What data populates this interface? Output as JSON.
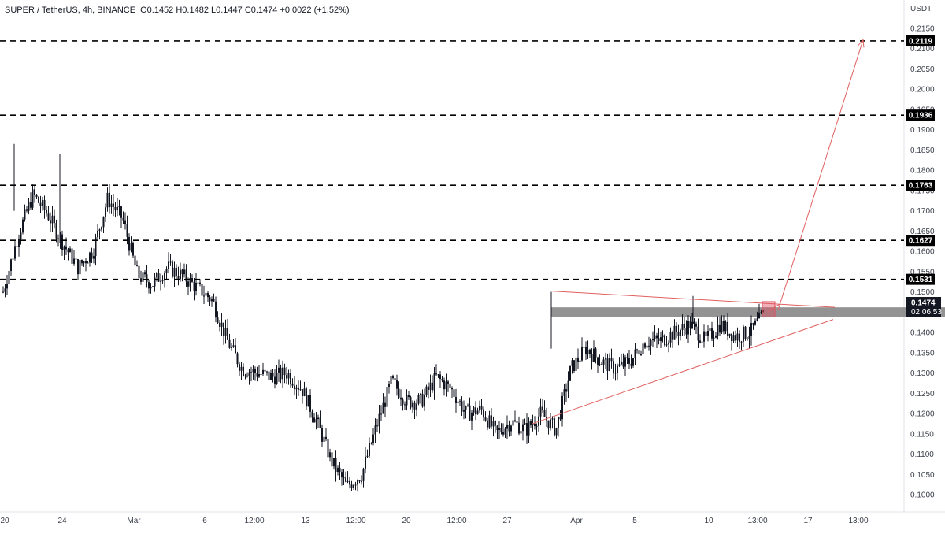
{
  "header": {
    "symbol": "SUPER / TetherUS, 4h, BINANCE",
    "ohlc": "O0.1452 H0.1482 L0.1447 C0.1474 +0.0022 (+1.52%)"
  },
  "axis": {
    "unit": "USDT",
    "y_ticks": [
      "0.1000",
      "0.1050",
      "0.1100",
      "0.1150",
      "0.1200",
      "0.1250",
      "0.1300",
      "0.1350",
      "0.1400",
      "0.1450",
      "0.1500",
      "0.1550",
      "0.1600",
      "0.1650",
      "0.1700",
      "0.1750",
      "0.1800",
      "0.1850",
      "0.1900",
      "0.1950",
      "0.2000",
      "0.2050",
      "0.2100",
      "0.2150"
    ],
    "x_ticks": [
      "20",
      "24",
      "Mar",
      "6",
      "12:00",
      "13",
      "12:00",
      "20",
      "12:00",
      "27",
      "Apr",
      "5",
      "10",
      "13:00",
      "17",
      "13:00"
    ]
  },
  "levels": [
    {
      "value": 0.2119,
      "label": "0.2119"
    },
    {
      "value": 0.1936,
      "label": "0.1936"
    },
    {
      "value": 0.1763,
      "label": "0.1763"
    },
    {
      "value": 0.1627,
      "label": "0.1627"
    },
    {
      "value": 0.1531,
      "label": "0.1531"
    }
  ],
  "current_price": {
    "value": 0.1474,
    "label": "0.1474",
    "countdown": "02:06:53"
  },
  "colors": {
    "candle": "#131722",
    "level_line": "#000000",
    "trendline": "#e0605f",
    "zone": "#808080",
    "highlight_box": "#e05060",
    "label_bg": "#000000",
    "price_label_bg": "#131722"
  },
  "chart_data": {
    "type": "candlestick",
    "title": "SUPER / TetherUS, 4h, BINANCE",
    "ylim": [
      0.0975,
      0.2185
    ],
    "y_scale": "linear",
    "grid": false,
    "x_labels": [
      "20",
      "24",
      "Mar",
      "6",
      "12:00",
      "13",
      "12:00",
      "20",
      "12:00",
      "27",
      "Apr",
      "5",
      "10",
      "13:00",
      "17",
      "13:00"
    ],
    "series": [
      {
        "type": "candles",
        "anchors": [
          [
            0.15,
            0.147
          ],
          [
            0.164,
            0.16
          ],
          [
            0.174,
            0.169
          ],
          [
            0.169,
            0.164
          ],
          [
            0.162,
            0.156
          ],
          [
            0.156,
            0.153
          ],
          [
            0.16,
            0.155
          ],
          [
            0.173,
            0.165
          ],
          [
            0.168,
            0.162
          ],
          [
            0.154,
            0.152
          ],
          [
            0.152,
            0.15
          ],
          [
            0.156,
            0.153
          ],
          [
            0.154,
            0.151
          ],
          [
            0.151,
            0.15
          ],
          [
            0.148,
            0.146
          ],
          [
            0.138,
            0.132
          ],
          [
            0.131,
            0.129
          ],
          [
            0.13,
            0.128
          ],
          [
            0.129,
            0.127
          ],
          [
            0.13,
            0.128
          ],
          [
            0.126,
            0.122
          ],
          [
            0.118,
            0.114
          ],
          [
            0.108,
            0.106
          ],
          [
            0.102,
            0.104
          ],
          [
            0.105,
            0.104
          ],
          [
            0.117,
            0.112
          ],
          [
            0.128,
            0.122
          ],
          [
            0.123,
            0.119
          ],
          [
            0.123,
            0.123
          ],
          [
            0.129,
            0.127
          ],
          [
            0.126,
            0.122
          ],
          [
            0.12,
            0.119
          ],
          [
            0.121,
            0.117
          ],
          [
            0.115,
            0.115
          ],
          [
            0.118,
            0.116
          ],
          [
            0.116,
            0.115
          ],
          [
            0.12,
            0.118
          ],
          [
            0.116,
            0.115
          ],
          [
            0.131,
            0.132
          ],
          [
            0.136,
            0.138
          ],
          [
            0.133,
            0.134
          ],
          [
            0.131,
            0.129
          ],
          [
            0.133,
            0.135
          ],
          [
            0.138,
            0.138
          ],
          [
            0.138,
            0.136
          ],
          [
            0.14,
            0.14
          ],
          [
            0.142,
            0.141
          ],
          [
            0.138,
            0.139
          ],
          [
            0.142,
            0.144
          ],
          [
            0.139,
            0.138
          ],
          [
            0.14,
            0.141
          ],
          [
            0.145,
            0.1474
          ]
        ]
      }
    ],
    "horizontal_levels": [
      0.2119,
      0.1936,
      0.1763,
      0.1627,
      0.1531
    ],
    "last_price": 0.1474,
    "resistance_zone": [
      0.1438,
      0.1462
    ],
    "annotations": [
      "triangle pattern (descending upper trendline, ascending lower trendline)",
      "projected breakout arrow toward 0.2119"
    ]
  }
}
